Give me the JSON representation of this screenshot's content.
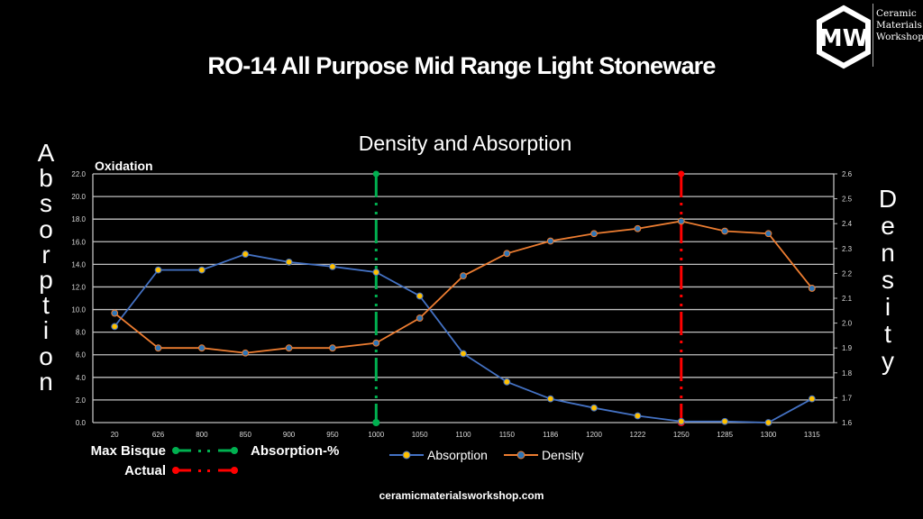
{
  "header": {
    "title": "RO-14 All Purpose Mid Range Light Stoneware",
    "logo_text": [
      "Ceramic",
      "Materials",
      "Workshop"
    ],
    "logo_monogram": "MW"
  },
  "side_labels": {
    "left": "Absorption",
    "right": "Density"
  },
  "chart_data": {
    "type": "line",
    "title": "Density and Absorption",
    "subtitle": "Oxidation",
    "xlabel": "",
    "ylabel": "Absorption",
    "y2label": "Density",
    "categories": [
      "20",
      "626",
      "800",
      "850",
      "900",
      "950",
      "1000",
      "1050",
      "1100",
      "1150",
      "1186",
      "1200",
      "1222",
      "1250",
      "1285",
      "1300",
      "1315"
    ],
    "ylim": [
      0,
      22
    ],
    "y_ticks": [
      "0.0",
      "2.0",
      "4.0",
      "6.0",
      "8.0",
      "10.0",
      "12.0",
      "14.0",
      "16.0",
      "18.0",
      "20.0",
      "22.0"
    ],
    "y2lim": [
      1.6,
      2.6
    ],
    "y2_ticks": [
      "1.6",
      "1.7",
      "1.8",
      "1.9",
      "2.0",
      "2.1",
      "2.2",
      "2.3",
      "2.4",
      "2.5",
      "2.6"
    ],
    "grid": true,
    "series": [
      {
        "name": "Absorption",
        "axis": "left",
        "line_color": "#4472C4",
        "marker_color": "#FFC000",
        "values": [
          8.5,
          13.5,
          13.5,
          14.9,
          14.2,
          13.8,
          13.3,
          11.2,
          6.1,
          3.6,
          2.1,
          1.3,
          0.6,
          0.1,
          0.1,
          0.0,
          2.1
        ]
      },
      {
        "name": "Density",
        "axis": "right",
        "line_color": "#ED7D31",
        "marker_color": "#2E75B6",
        "values": [
          2.04,
          1.9,
          1.9,
          1.88,
          1.9,
          1.9,
          1.92,
          2.02,
          2.19,
          2.28,
          2.33,
          2.36,
          2.38,
          2.41,
          2.37,
          2.36,
          2.14
        ]
      }
    ],
    "reference_lines": [
      {
        "name": "Max Bisque",
        "category": "1000",
        "color": "#00B050"
      },
      {
        "name": "Actual",
        "category": "1250",
        "color": "#FF0000"
      }
    ],
    "legend": {
      "placement": "bottom",
      "entries": [
        "Absorption",
        "Density"
      ]
    }
  },
  "bisque_legend": {
    "max_bisque_label": "Max Bisque",
    "max_bisque_note": "Absorption-%",
    "actual_label": "Actual",
    "green": "#00B050",
    "red": "#FF0000"
  },
  "footer": {
    "url": "ceramicmaterialsworkshop.com"
  }
}
